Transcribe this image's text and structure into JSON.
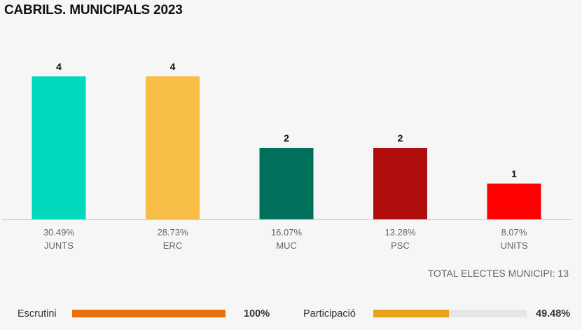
{
  "title": "CABRILS. MUNICIPALS 2023",
  "chart_data": {
    "type": "bar",
    "title": "CABRILS. MUNICIPALS 2023",
    "categories": [
      "JUNTS",
      "ERC",
      "MUC",
      "PSC",
      "UNITS"
    ],
    "values": [
      4,
      4,
      2,
      2,
      1
    ],
    "percentages": [
      "30.49%",
      "28.73%",
      "16.07%",
      "13.28%",
      "8.07%"
    ],
    "colors": [
      "#00d9bb",
      "#f8bd44",
      "#00705a",
      "#b00e0e",
      "#ff0000"
    ],
    "ylim": [
      0,
      4
    ],
    "grid": false,
    "legend": "none"
  },
  "total_label": "TOTAL ELECTES MUNICIPI: 13",
  "footer": {
    "escrutini_label": "Escrutini",
    "escrutini_value": "100%",
    "escrutini_fraction": 1.0,
    "escrutini_color": "#e8700c",
    "participacio_label": "Participació",
    "participacio_value": "49.48%",
    "participacio_fraction": 0.4948,
    "participacio_color": "#e8a317"
  }
}
